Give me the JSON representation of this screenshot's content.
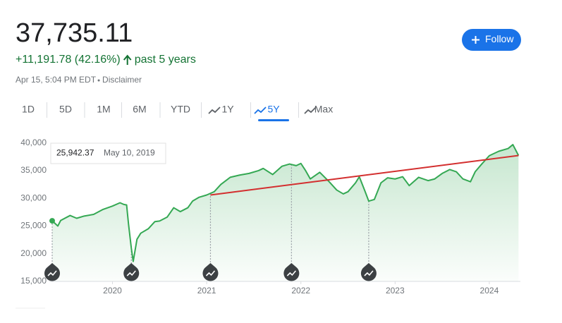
{
  "header": {
    "price": "37,735.11",
    "change": "+11,191.78 (42.16%)",
    "period": "past 5 years",
    "timestamp": "Apr 15, 5:04 PM EDT",
    "disclaimer": "Disclaimer",
    "follow": "Follow"
  },
  "tabs": {
    "items": [
      "1D",
      "5D",
      "1M",
      "6M",
      "YTD",
      "1Y",
      "5Y",
      "Max"
    ],
    "active": "5Y"
  },
  "tooltip": {
    "value": "25,942.37",
    "date": "May 10, 2019"
  },
  "chart_data": {
    "type": "line",
    "xlim": [
      2019.33,
      2024.33
    ],
    "xticks": [
      2020,
      2021,
      2022,
      2023,
      2024
    ],
    "ylim": [
      15000,
      42000
    ],
    "yticks": [
      {
        "value": 15000,
        "label": "15,000"
      },
      {
        "value": 20000,
        "label": "20,000"
      },
      {
        "value": 25000,
        "label": "25,000"
      },
      {
        "value": 30000,
        "label": "30,000"
      },
      {
        "value": 35000,
        "label": "35,000"
      },
      {
        "value": 40000,
        "label": "40,000"
      }
    ],
    "grid": false,
    "series": [
      {
        "color": "#34a853",
        "x": [
          2019.36,
          2019.42,
          2019.45,
          2019.55,
          2019.62,
          2019.7,
          2019.8,
          2019.9,
          2020.0,
          2020.08,
          2020.12,
          2020.15,
          2020.17,
          2020.2,
          2020.22,
          2020.26,
          2020.3,
          2020.38,
          2020.45,
          2020.5,
          2020.58,
          2020.65,
          2020.72,
          2020.8,
          2020.85,
          2020.92,
          2021.0,
          2021.08,
          2021.15,
          2021.25,
          2021.35,
          2021.45,
          2021.55,
          2021.6,
          2021.7,
          2021.8,
          2021.88,
          2021.95,
          2022.0,
          2022.05,
          2022.1,
          2022.2,
          2022.3,
          2022.38,
          2022.45,
          2022.5,
          2022.58,
          2022.62,
          2022.68,
          2022.72,
          2022.78,
          2022.85,
          2022.92,
          2023.0,
          2023.08,
          2023.15,
          2023.25,
          2023.35,
          2023.42,
          2023.5,
          2023.58,
          2023.65,
          2023.72,
          2023.8,
          2023.85,
          2023.92,
          2024.0,
          2024.1,
          2024.2,
          2024.25,
          2024.31
        ],
        "values": [
          25942,
          25000,
          26000,
          26900,
          26400,
          26800,
          27100,
          28000,
          28600,
          29200,
          28900,
          28800,
          25400,
          21000,
          18600,
          22600,
          23700,
          24500,
          25800,
          25900,
          26600,
          28300,
          27600,
          28300,
          29500,
          30200,
          30600,
          31200,
          32500,
          33800,
          34200,
          34500,
          35000,
          35400,
          34300,
          35800,
          36200,
          35900,
          36300,
          35000,
          33500,
          34700,
          33000,
          31500,
          30800,
          31200,
          32800,
          33900,
          31300,
          29500,
          29800,
          32800,
          33700,
          33500,
          33900,
          32300,
          33800,
          33200,
          33500,
          34500,
          35200,
          34800,
          33500,
          33000,
          34800,
          36200,
          37700,
          38500,
          39000,
          39700,
          37735
        ]
      },
      {
        "color": "#d32f2f",
        "x": [
          2021.04,
          2024.31
        ],
        "values": [
          30600,
          37735
        ]
      }
    ],
    "events": [
      2019.36,
      2020.2,
      2021.04,
      2021.9,
      2022.72
    ]
  }
}
